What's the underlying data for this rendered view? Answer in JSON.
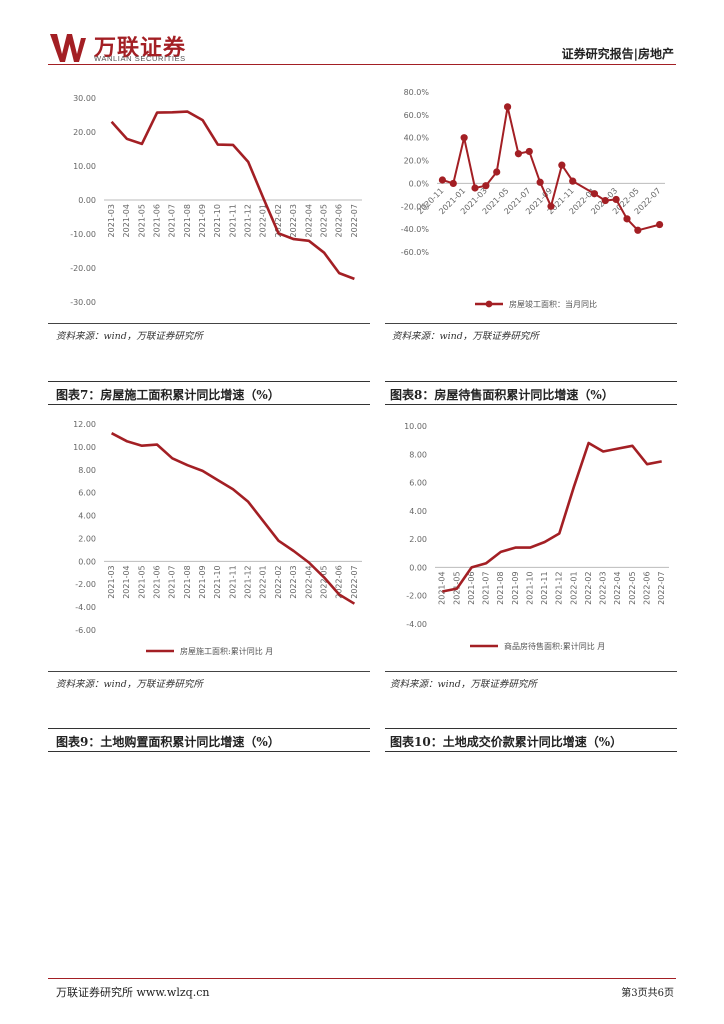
{
  "header": {
    "logo_cn": "万联证券",
    "logo_en": "WANLIAN SECURITIES",
    "report_tag": "证券研究报告|房地产",
    "brand_color": "#a31f24"
  },
  "line_color": "#a31f24",
  "charts": [
    {
      "source": "资料来源：wind，万联证券研究所",
      "chart_data": {
        "type": "line",
        "x": [
          "2021-03",
          "2021-04",
          "2021-05",
          "2021-06",
          "2021-07",
          "2021-08",
          "2021-09",
          "2021-10",
          "2021-11",
          "2021-12",
          "2022-01",
          "2022-02",
          "2022-03",
          "2022-04",
          "2022-05",
          "2022-06",
          "2022-07"
        ],
        "series": [
          {
            "values": [
              23.0,
              18.0,
              16.5,
              25.7,
              25.8,
              26.0,
              23.5,
              16.3,
              16.2,
              11.2,
              0.5,
              -9.8,
              -11.5,
              -12.0,
              -15.5,
              -21.5,
              -23.2
            ]
          }
        ],
        "yticks": [
          "30.00",
          "20.00",
          "10.00",
          "0.00",
          "-10.00",
          "-20.00",
          "-30.00"
        ],
        "ylim": [
          -30,
          30
        ],
        "grid": false
      }
    },
    {
      "source": "资料来源：wind，万联证券研究所",
      "chart_data": {
        "type": "line",
        "x": [
          "2020-11",
          "2020-12",
          "2021-01",
          "2021-02",
          "2021-03",
          "2021-04",
          "2021-05",
          "2021-06",
          "2021-07",
          "2021-08",
          "2021-09",
          "2021-10",
          "2021-11",
          "2021-12",
          "2022-01",
          "2022-02",
          "2022-03",
          "2022-04",
          "2022-05",
          "2022-06",
          "2022-07"
        ],
        "xticks": [
          "2020-11",
          "2021-01",
          "2021-03",
          "2021-05",
          "2021-07",
          "2021-09",
          "2021-11",
          "2022-01",
          "2022-03",
          "2022-05",
          "2022-07"
        ],
        "series": [
          {
            "name": "房屋竣工面积：当月同比",
            "values": [
              3,
              0,
              40,
              -4,
              -2,
              10,
              67,
              26,
              28,
              1,
              -20,
              16,
              2,
              null,
              -9,
              -15,
              -14,
              -31,
              -41,
              null,
              -36
            ]
          }
        ],
        "yticks": [
          "80.0%",
          "60.0%",
          "40.0%",
          "20.0%",
          "0.0%",
          "-20.0%",
          "-40.0%",
          "-60.0%"
        ],
        "ylim": [
          -60,
          80
        ],
        "markers": true,
        "grid": false,
        "legend_position": "bottom"
      }
    },
    {
      "figure_title": "图表7：房屋施工面积累计同比增速（%）",
      "source": "资料来源：wind，万联证券研究所",
      "chart_data": {
        "type": "line",
        "x": [
          "2021-03",
          "2021-04",
          "2021-05",
          "2021-06",
          "2021-07",
          "2021-08",
          "2021-09",
          "2021-10",
          "2021-11",
          "2021-12",
          "2022-01",
          "2022-02",
          "2022-03",
          "2022-04",
          "2022-05",
          "2022-06",
          "2022-07"
        ],
        "series": [
          {
            "name": "房屋施工面积:累计同比 月",
            "values": [
              11.2,
              10.5,
              10.1,
              10.2,
              9.0,
              8.4,
              7.9,
              7.1,
              6.3,
              5.2,
              3.5,
              1.8,
              0.9,
              -0.1,
              -1.4,
              -2.9,
              -3.7
            ]
          }
        ],
        "yticks": [
          "12.00",
          "10.00",
          "8.00",
          "6.00",
          "4.00",
          "2.00",
          "0.00",
          "-2.00",
          "-4.00",
          "-6.00"
        ],
        "ylim": [
          -6,
          12
        ],
        "grid": false,
        "legend_position": "bottom"
      }
    },
    {
      "figure_title": "图表8：房屋待售面积累计同比增速（%）",
      "source": "资料来源：wind，万联证券研究所",
      "chart_data": {
        "type": "line",
        "x": [
          "2021-04",
          "2021-05",
          "2021-06",
          "2021-07",
          "2021-08",
          "2021-09",
          "2021-10",
          "2021-11",
          "2021-12",
          "2022-01",
          "2022-02",
          "2022-03",
          "2022-04",
          "2022-05",
          "2022-06",
          "2022-07"
        ],
        "series": [
          {
            "name": "商品房待售面积:累计同比 月",
            "values": [
              -1.7,
              -1.5,
              0.0,
              0.3,
              1.1,
              1.4,
              1.4,
              1.8,
              2.4,
              5.7,
              8.8,
              8.2,
              8.4,
              8.6,
              7.3,
              7.5
            ]
          }
        ],
        "yticks": [
          "10.00",
          "8.00",
          "6.00",
          "4.00",
          "2.00",
          "0.00",
          "-2.00",
          "-4.00"
        ],
        "ylim": [
          -4,
          10
        ],
        "grid": false,
        "legend_position": "bottom"
      }
    }
  ],
  "figures_bottom": [
    {
      "title": "图表9：土地购置面积累计同比增速（%）"
    },
    {
      "title": "图表10：土地成交价款累计同比增速（%）"
    }
  ],
  "footer": {
    "left": "万联证券研究所 www.wlzq.cn",
    "right": "第3页共6页"
  }
}
